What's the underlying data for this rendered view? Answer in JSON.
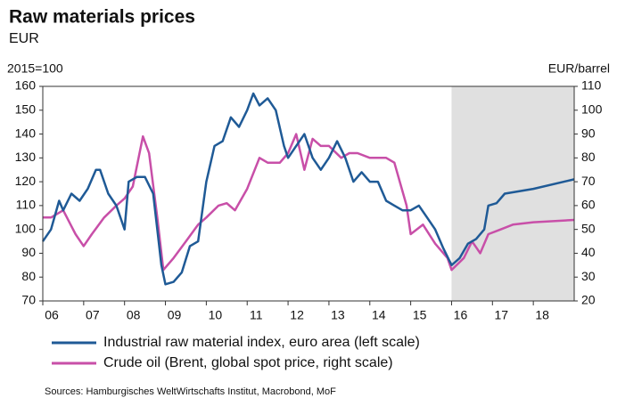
{
  "chart_data": {
    "type": "line",
    "title": "Raw materials prices",
    "subtitle": "EUR",
    "y_label": "2015=100",
    "y2_label": "EUR/barrel",
    "source": "Sources: Hamburgisches WeltWirtschafts Institut, Macrobond, MoF",
    "xlim": [
      2006,
      2019
    ],
    "xticks": [
      {
        "value": 2006,
        "label": "06"
      },
      {
        "value": 2007,
        "label": "07"
      },
      {
        "value": 2008,
        "label": "08"
      },
      {
        "value": 2009,
        "label": "09"
      },
      {
        "value": 2010,
        "label": "10"
      },
      {
        "value": 2011,
        "label": "11"
      },
      {
        "value": 2012,
        "label": "12"
      },
      {
        "value": 2013,
        "label": "13"
      },
      {
        "value": 2014,
        "label": "14"
      },
      {
        "value": 2015,
        "label": "15"
      },
      {
        "value": 2016,
        "label": "16"
      },
      {
        "value": 2017,
        "label": "17"
      },
      {
        "value": 2018,
        "label": "18"
      }
    ],
    "ylim": [
      70,
      160
    ],
    "yticks": [
      70,
      80,
      90,
      100,
      110,
      120,
      130,
      140,
      150,
      160
    ],
    "y2lim": [
      20,
      110
    ],
    "y2ticks": [
      20,
      30,
      40,
      50,
      60,
      70,
      80,
      90,
      100,
      110
    ],
    "shaded_region": [
      2016,
      2019
    ],
    "series": [
      {
        "name": "Industrial raw material index, euro area (left scale)",
        "color": "#1f5a96",
        "axis": "y",
        "x": [
          2006.0,
          2006.2,
          2006.4,
          2006.5,
          2006.7,
          2006.9,
          2007.1,
          2007.3,
          2007.4,
          2007.6,
          2007.8,
          2008.0,
          2008.1,
          2008.3,
          2008.5,
          2008.7,
          2008.9,
          2009.0,
          2009.2,
          2009.4,
          2009.6,
          2009.8,
          2010.0,
          2010.2,
          2010.4,
          2010.6,
          2010.8,
          2011.0,
          2011.15,
          2011.3,
          2011.5,
          2011.7,
          2011.9,
          2012.0,
          2012.2,
          2012.4,
          2012.6,
          2012.8,
          2013.0,
          2013.2,
          2013.4,
          2013.6,
          2013.8,
          2014.0,
          2014.2,
          2014.4,
          2014.6,
          2014.8,
          2015.0,
          2015.2,
          2015.4,
          2015.6,
          2015.8,
          2016.0,
          2016.2,
          2016.4,
          2016.6,
          2016.8,
          2016.9,
          2017.1,
          2017.3,
          2018.0,
          2019.0
        ],
        "values": [
          95,
          100,
          112,
          108,
          115,
          112,
          117,
          125,
          125,
          115,
          110,
          100,
          120,
          122,
          122,
          115,
          85,
          77,
          78,
          82,
          93,
          95,
          120,
          135,
          137,
          147,
          143,
          150,
          157,
          152,
          155,
          150,
          135,
          130,
          135,
          140,
          130,
          125,
          130,
          137,
          130,
          120,
          124,
          120,
          120,
          112,
          110,
          108,
          108,
          110,
          105,
          100,
          92,
          85,
          88,
          94,
          96,
          100,
          110,
          111,
          115,
          117,
          121
        ]
      },
      {
        "name": "Crude oil (Brent, global spot price, right scale)",
        "color": "#c84fa8",
        "axis": "y2",
        "x": [
          2006.0,
          2006.2,
          2006.5,
          2006.8,
          2007.0,
          2007.2,
          2007.5,
          2007.8,
          2008.0,
          2008.2,
          2008.45,
          2008.6,
          2008.8,
          2008.95,
          2009.2,
          2009.5,
          2009.8,
          2010.0,
          2010.3,
          2010.5,
          2010.7,
          2011.0,
          2011.3,
          2011.5,
          2011.8,
          2012.0,
          2012.2,
          2012.4,
          2012.6,
          2012.8,
          2013.0,
          2013.3,
          2013.5,
          2013.7,
          2014.0,
          2014.4,
          2014.6,
          2014.9,
          2015.0,
          2015.3,
          2015.6,
          2015.9,
          2016.0,
          2016.3,
          2016.5,
          2016.7,
          2016.9,
          2017.2,
          2017.5,
          2018.0,
          2019.0
        ],
        "values": [
          55,
          55,
          58,
          48,
          43,
          48,
          55,
          60,
          63,
          68,
          89,
          82,
          55,
          33,
          38,
          45,
          52,
          55,
          60,
          61,
          58,
          67,
          80,
          78,
          78,
          82,
          90,
          75,
          88,
          85,
          85,
          80,
          82,
          82,
          80,
          80,
          78,
          60,
          48,
          52,
          44,
          38,
          33,
          38,
          45,
          40,
          48,
          50,
          52,
          53,
          54
        ]
      }
    ]
  }
}
